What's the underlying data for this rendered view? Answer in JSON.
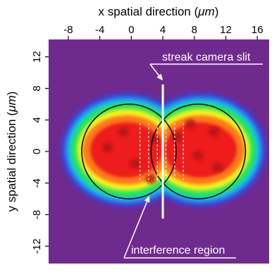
{
  "chart_data": {
    "type": "heatmap",
    "xlabel_prefix": "x spatial direction (",
    "xlabel_unit": "μm",
    "xlabel_suffix": ")",
    "ylabel_prefix": "y spatial direction (",
    "ylabel_unit": "μm",
    "ylabel_suffix": ")",
    "x_ticks": [
      -8,
      -4,
      0,
      4,
      8,
      12,
      16
    ],
    "y_ticks": [
      12,
      8,
      4,
      0,
      -4,
      -8,
      -12
    ],
    "xlim": [
      -10.5,
      17.5
    ],
    "ylim": [
      -14.2,
      14.2
    ],
    "grid": false,
    "colormap": [
      "#5a1a80",
      "#3c3cd8",
      "#19c0ff",
      "#1de65a",
      "#f7f21a",
      "#ff7a1a",
      "#ee1b1b"
    ],
    "background_color": "#6f2a8e",
    "beams": [
      {
        "center": [
          -0.3,
          0
        ],
        "radius": 6.0
      },
      {
        "center": [
          8.5,
          0
        ],
        "radius": 6.0
      }
    ],
    "slit": {
      "x": 4,
      "y_range": [
        -8.5,
        8.5
      ],
      "color": "#ffffff"
    },
    "fringe_lines_x": [
      1.1,
      2.2,
      3.3,
      4.4,
      5.5,
      6.6
    ],
    "annotations": [
      {
        "text": "streak camera slit",
        "points_to": [
          4,
          9.0
        ]
      },
      {
        "text": "interference region",
        "points_to": [
          2.3,
          -5.6
        ]
      }
    ]
  }
}
